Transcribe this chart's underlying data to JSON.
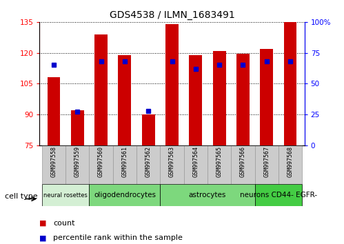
{
  "title": "GDS4538 / ILMN_1683491",
  "samples": [
    "GSM997558",
    "GSM997559",
    "GSM997560",
    "GSM997561",
    "GSM997562",
    "GSM997563",
    "GSM997564",
    "GSM997565",
    "GSM997566",
    "GSM997567",
    "GSM997568"
  ],
  "bar_values": [
    108,
    92,
    129,
    119,
    90,
    134,
    119,
    121,
    119.5,
    122,
    135
  ],
  "percentile_values": [
    65,
    27,
    68,
    68,
    28,
    68,
    62,
    65,
    65,
    68,
    68
  ],
  "bar_bottom": 75,
  "ylim_left": [
    75,
    135
  ],
  "ylim_right": [
    0,
    100
  ],
  "yticks_left": [
    75,
    90,
    105,
    120,
    135
  ],
  "yticks_right": [
    0,
    25,
    50,
    75,
    100
  ],
  "ytick_labels_right": [
    "0",
    "25",
    "50",
    "75",
    "100%"
  ],
  "bar_color": "#cc0000",
  "percentile_color": "#0000cc",
  "cell_types": [
    {
      "label": "neural rosettes",
      "start": 0,
      "end": 2,
      "color": "#cceecc"
    },
    {
      "label": "oligodendrocytes",
      "start": 2,
      "end": 5,
      "color": "#77cc77"
    },
    {
      "label": "astrocytes",
      "start": 5,
      "end": 9,
      "color": "#77cc77"
    },
    {
      "label": "neurons CD44- EGFR-",
      "start": 9,
      "end": 11,
      "color": "#44cc44"
    }
  ],
  "cell_type_label": "cell type",
  "legend_count_label": "count",
  "legend_percentile_label": "percentile rank within the sample",
  "bar_color_label": "#cc0000",
  "percentile_color_label": "#0000cc",
  "sample_bg_color": "#cccccc",
  "sample_border_color": "#999999"
}
